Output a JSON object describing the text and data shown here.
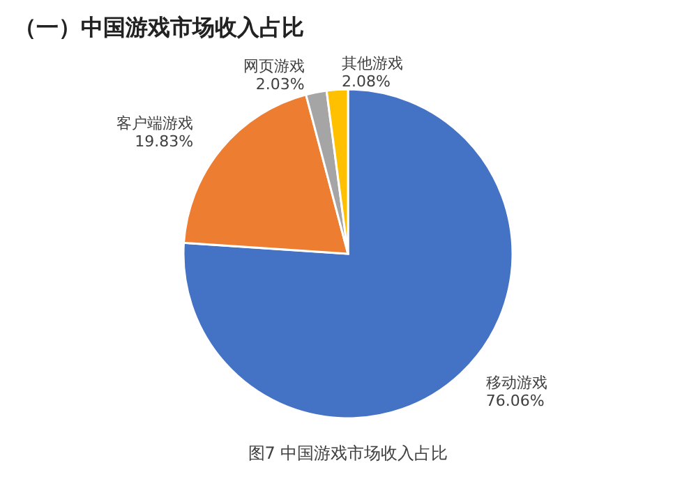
{
  "chart_data": {
    "type": "pie",
    "title": "（一）中国游戏市场收入占比",
    "categories": [
      "移动游戏",
      "客户端游戏",
      "网页游戏",
      "其他游戏"
    ],
    "values": [
      76.06,
      19.83,
      2.03,
      2.08
    ],
    "colors": [
      "#4472c4",
      "#ed7d31",
      "#a5a5a5",
      "#ffc000"
    ],
    "value_labels": [
      "76.06%",
      "19.83%",
      "2.03%",
      "2.08%"
    ],
    "legend": false,
    "annotations": [
      "图7 中国游戏市场收入占比"
    ]
  }
}
